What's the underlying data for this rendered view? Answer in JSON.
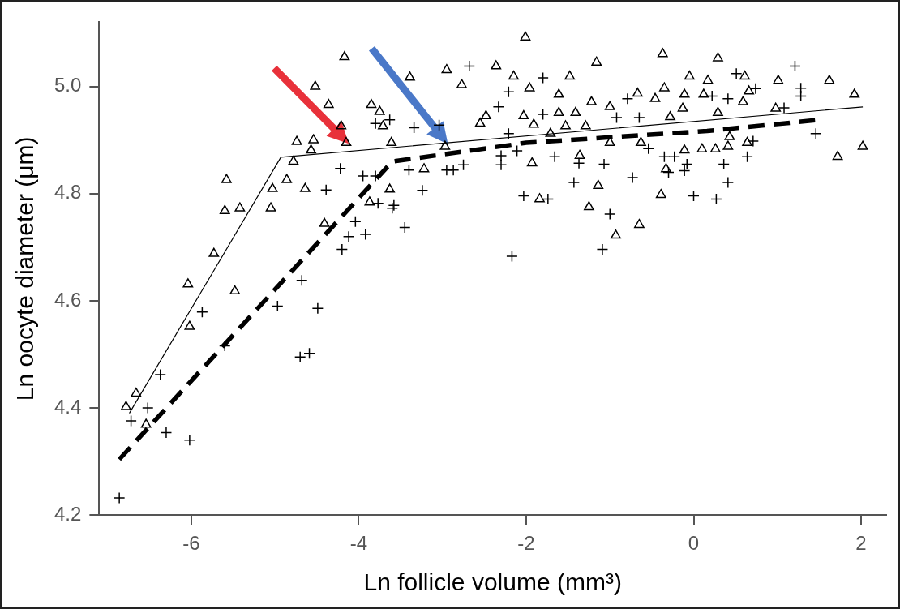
{
  "chart_data": {
    "type": "scatter",
    "xlabel": "Ln follicle volume (mm³)",
    "ylabel": "Ln oocyte diameter (μm)",
    "xlim": [
      -7.1,
      2.3
    ],
    "ylim": [
      4.2,
      5.12
    ],
    "xticks": [
      -6,
      -4,
      -2,
      0,
      2
    ],
    "yticks": [
      4.2,
      4.4,
      4.6,
      4.8,
      {
        "value": 5,
        "label": "5.0"
      }
    ],
    "grid": false,
    "legend": false,
    "series": [
      {
        "type": "scatter",
        "marker": "triangle",
        "color": "#000000",
        "x": [
          -4.17,
          -4.52,
          -4.36,
          -3.85,
          -3.75,
          -4.21,
          -4.74,
          -4.54,
          -4.57,
          -4.15,
          -4.78,
          -5.58,
          -4.86,
          -5.03,
          -4.64,
          -5.6,
          -5.42,
          -5.05,
          -5.73,
          -6.04,
          -5.48,
          -3.63,
          -3.87,
          -4.41,
          -6.02,
          -6.66,
          -6.78,
          -6.54,
          -2.01,
          -0.37,
          0.29,
          -3.39,
          -2.95,
          -2.36,
          -2.77,
          -2.15,
          -1.48,
          -1.16,
          -1.96,
          -1.61,
          -0.05,
          0.17,
          0.61,
          1.01,
          1.62,
          1.92,
          -0.11,
          0.12,
          -0.46,
          -0.35,
          -0.67,
          -1.22,
          -1.0,
          0.59,
          0.66,
          -2.48,
          -2.55,
          -1.61,
          -1.41,
          -0.13,
          0.29,
          -0.28,
          0.98,
          -3.71,
          -2.03,
          -1.53,
          -1.29,
          -1.91,
          -3.61,
          -2.97,
          -1.71,
          -1.0,
          -0.63,
          0.43,
          0.64,
          -3.22,
          -1.93,
          -1.36,
          -0.33,
          -0.11,
          0.1,
          0.26,
          0.41,
          1.72,
          2.02,
          -1.14,
          -1.84,
          -1.25,
          -0.39,
          -0.65,
          -0.93
        ],
        "values": [
          5.055,
          5.0,
          4.966,
          4.966,
          4.953,
          4.926,
          4.897,
          4.9,
          4.881,
          4.895,
          4.86,
          4.826,
          4.826,
          4.809,
          4.809,
          4.768,
          4.773,
          4.773,
          4.688,
          4.631,
          4.618,
          4.808,
          4.784,
          4.744,
          4.552,
          4.427,
          4.402,
          4.369,
          5.092,
          5.061,
          5.053,
          5.017,
          5.031,
          5.038,
          5.003,
          5.019,
          5.019,
          5.045,
          4.997,
          4.985,
          5.019,
          5.011,
          5.019,
          5.011,
          5.011,
          4.985,
          4.985,
          4.985,
          4.977,
          4.997,
          4.987,
          4.971,
          4.962,
          4.971,
          4.991,
          4.945,
          4.931,
          4.951,
          4.951,
          4.959,
          4.951,
          4.943,
          4.959,
          4.926,
          4.945,
          4.926,
          4.926,
          4.929,
          4.895,
          4.888,
          4.912,
          4.895,
          4.895,
          4.906,
          4.895,
          4.846,
          4.857,
          4.871,
          4.846,
          4.881,
          4.883,
          4.883,
          4.888,
          4.869,
          4.888,
          4.815,
          4.79,
          4.775,
          4.798,
          4.742,
          4.722
        ]
      },
      {
        "type": "scatter",
        "marker": "cross",
        "color": "#000000",
        "x": [
          -3.63,
          -3.8,
          -4.22,
          -4.39,
          -3.95,
          -3.8,
          -4.04,
          -4.12,
          -3.92,
          -4.2,
          -4.68,
          -4.97,
          -4.49,
          -5.87,
          -3.6,
          -3.77,
          -5.6,
          -4.7,
          -4.59,
          -6.37,
          -6.52,
          -6.72,
          -6.3,
          -6.02,
          -6.86,
          -2.68,
          -1.8,
          -2.21,
          -2.33,
          -3.34,
          -3.04,
          -1.8,
          -0.92,
          -0.65,
          1.21,
          0.51,
          0.74,
          1.28,
          1.28,
          0.41,
          0.22,
          -0.79,
          1.08,
          -2.21,
          1.46,
          -2.3,
          -2.3,
          -2.75,
          -3.4,
          -2.95,
          -2.87,
          -2.11,
          -1.66,
          -1.37,
          -1.07,
          -0.35,
          -0.23,
          -0.08,
          -0.11,
          -0.3,
          0.36,
          0.64,
          0.71,
          -0.54,
          -0.73,
          -1.43,
          0.41,
          -3.24,
          -3.58,
          -2.03,
          -1.74,
          0.0,
          0.27,
          -1.0,
          -3.45,
          -1.09,
          -2.17
        ],
        "values": [
          4.938,
          4.931,
          4.847,
          4.807,
          4.833,
          4.833,
          4.748,
          4.72,
          4.724,
          4.696,
          4.638,
          4.59,
          4.586,
          4.579,
          4.773,
          4.782,
          4.516,
          4.495,
          4.502,
          4.462,
          4.4,
          4.376,
          4.354,
          4.34,
          4.232,
          5.038,
          5.016,
          4.99,
          4.962,
          4.923,
          4.928,
          4.948,
          4.942,
          4.942,
          5.038,
          5.024,
          4.996,
          4.997,
          4.982,
          4.977,
          4.982,
          4.977,
          4.96,
          4.912,
          4.912,
          4.871,
          4.854,
          4.854,
          4.844,
          4.844,
          4.844,
          4.88,
          4.869,
          4.857,
          4.855,
          4.869,
          4.869,
          4.855,
          4.843,
          4.84,
          4.855,
          4.869,
          4.898,
          4.884,
          4.83,
          4.821,
          4.821,
          4.806,
          4.778,
          4.796,
          4.79,
          4.796,
          4.79,
          4.762,
          4.737,
          4.696,
          4.683
        ]
      },
      {
        "type": "line",
        "marker": "none",
        "line_style": "solid",
        "color": "#000000",
        "x": [
          -6.74,
          -4.93,
          2.02
        ],
        "values": [
          4.39,
          4.868,
          4.962
        ]
      },
      {
        "type": "line",
        "marker": "none",
        "line_style": "dashed",
        "color": "#000000",
        "x": [
          -6.86,
          -3.6,
          -2.0,
          0.16,
          1.45
        ],
        "values": [
          4.304,
          4.86,
          4.895,
          4.917,
          4.937
        ]
      }
    ]
  }
}
